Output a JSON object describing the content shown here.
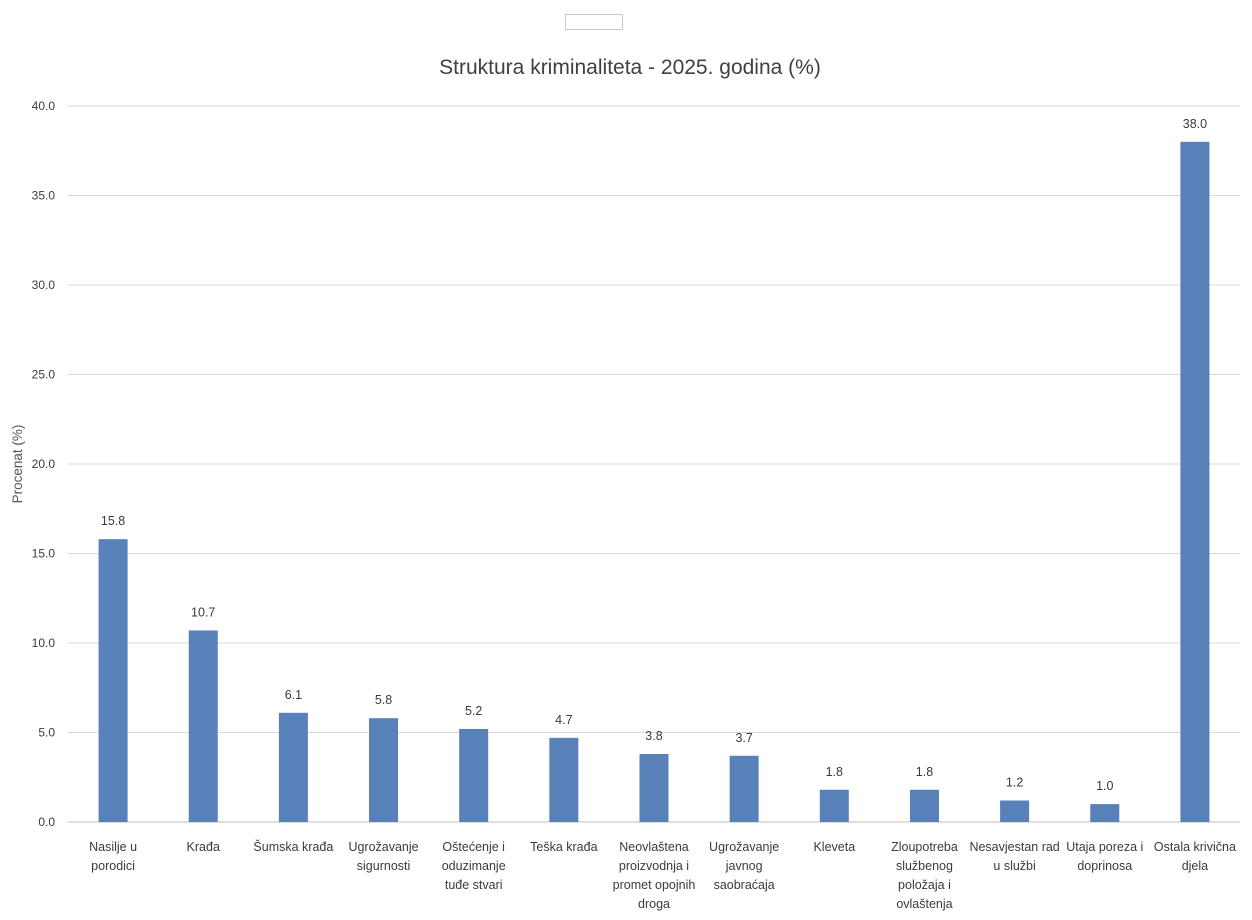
{
  "chart_data": {
    "type": "bar",
    "title": "Struktura kriminaliteta - 2025. godina (%)",
    "xlabel": "",
    "ylabel": "Procenat (%)",
    "ylim": [
      0,
      40
    ],
    "yticks": [
      "0.0",
      "5.0",
      "10.0",
      "15.0",
      "20.0",
      "25.0",
      "30.0",
      "35.0",
      "40.0"
    ],
    "grid": true,
    "legend": "top-center",
    "bar_color": "#5880b9",
    "categories": [
      [
        "Nasilje u",
        "porodici"
      ],
      [
        "Krađa"
      ],
      [
        "Šumska krađa"
      ],
      [
        "Ugrožavanje",
        "sigurnosti"
      ],
      [
        "Oštećenje i",
        "oduzimanje",
        "tuđe stvari"
      ],
      [
        "Teška krađa"
      ],
      [
        "Neovlaštena",
        "proizvodnja i",
        "promet opojnih",
        "droga"
      ],
      [
        "Ugrožavanje",
        "javnog",
        "saobraćaja"
      ],
      [
        "Kleveta"
      ],
      [
        "Zloupotreba",
        "službenog",
        "položaja i",
        "ovlaštenja"
      ],
      [
        "Nesavjestan rad",
        "u službi"
      ],
      [
        "Utaja poreza i",
        "doprinosa"
      ],
      [
        "Ostala krivična",
        "djela"
      ]
    ],
    "values": [
      15.8,
      10.7,
      6.1,
      5.8,
      5.2,
      4.7,
      3.8,
      3.7,
      1.8,
      1.8,
      1.2,
      1.0,
      38.0
    ],
    "value_labels": [
      "15.8",
      "10.7",
      "6.1",
      "5.8",
      "5.2",
      "4.7",
      "3.8",
      "3.7",
      "1.8",
      "1.8",
      "1.2",
      "1.0",
      "38.0"
    ]
  }
}
